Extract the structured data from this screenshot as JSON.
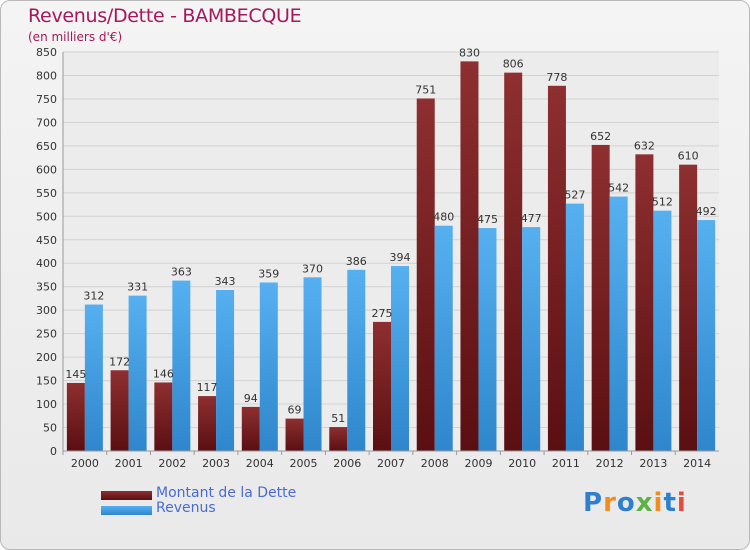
{
  "header": {
    "title": "Revenus/Dette - BAMBECQUE",
    "subtitle": "(en milliers d'€)"
  },
  "colors": {
    "title": "#a3195b",
    "dette": "#7a1f22",
    "revenus": "#4aa3e6",
    "legend_text": "#4a6cd1"
  },
  "legend": {
    "items": [
      {
        "label": "Montant de la Dette",
        "color": "#7a1f22"
      },
      {
        "label": "Revenus",
        "color": "#4aa3e6"
      }
    ]
  },
  "logo": {
    "text": "Proxiti",
    "letter_colors": [
      "#2f7fcf",
      "#f28c1d",
      "#2f7fcf",
      "#5ab344",
      "#f28c1d",
      "#2f7fcf",
      "#e34d3a"
    ]
  },
  "chart_data": {
    "type": "bar",
    "categories": [
      "2000",
      "2001",
      "2002",
      "2003",
      "2004",
      "2005",
      "2006",
      "2007",
      "2008",
      "2009",
      "2010",
      "2011",
      "2012",
      "2013",
      "2014"
    ],
    "series": [
      {
        "name": "Montant de la Dette",
        "values": [
          145,
          172,
          146,
          117,
          94,
          69,
          51,
          275,
          751,
          830,
          806,
          778,
          652,
          632,
          610
        ]
      },
      {
        "name": "Revenus",
        "values": [
          312,
          331,
          363,
          343,
          359,
          370,
          386,
          394,
          480,
          475,
          477,
          527,
          542,
          512,
          492
        ]
      }
    ],
    "ylim": [
      0,
      850
    ],
    "yticks": [
      0,
      50,
      100,
      150,
      200,
      250,
      300,
      350,
      400,
      450,
      500,
      550,
      600,
      650,
      700,
      750,
      800,
      850
    ],
    "grid": true,
    "legend_position": "bottom-left"
  }
}
